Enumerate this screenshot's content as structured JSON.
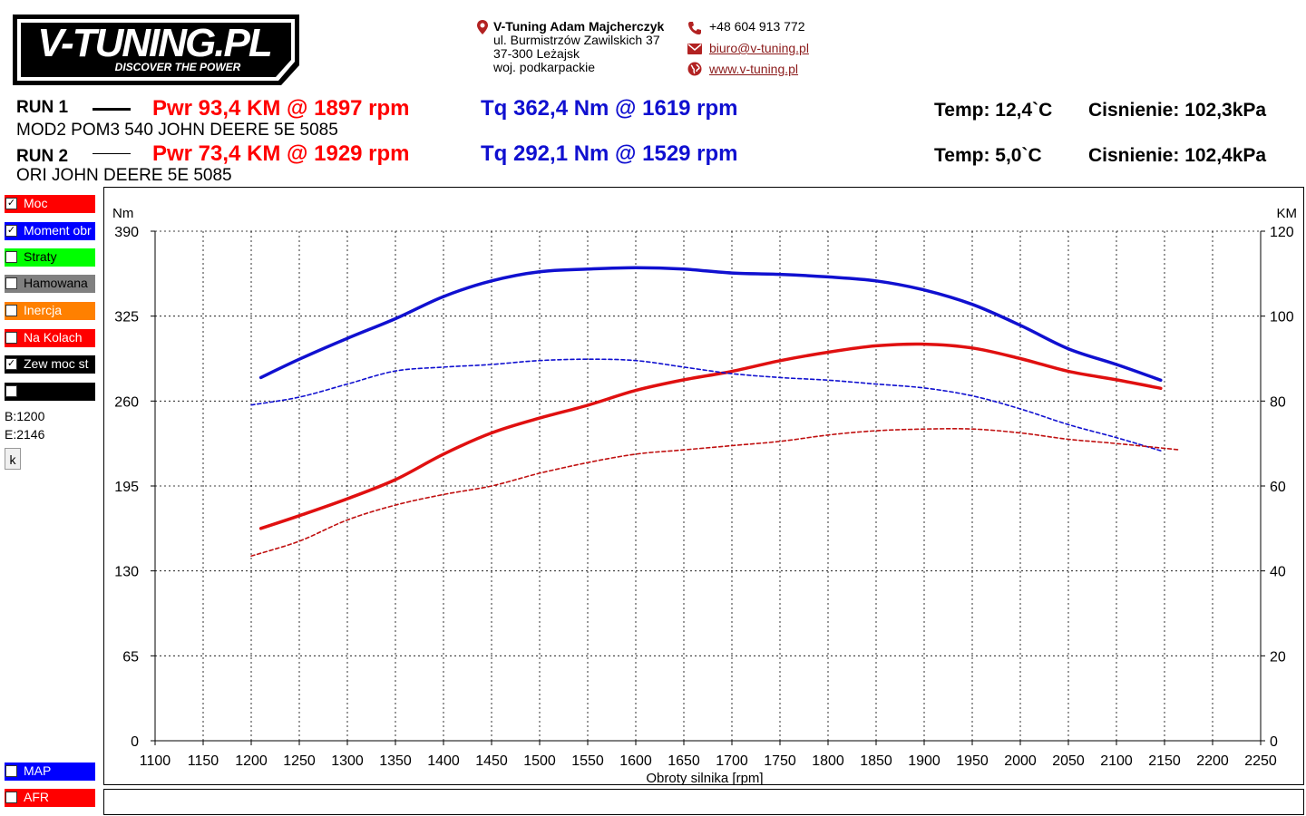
{
  "logo": {
    "main": "V-TUNING.PL",
    "tagline": "DISCOVER THE POWER"
  },
  "contact": {
    "name": "V-Tuning Adam Majcherczyk",
    "street": "ul. Burmistrzów Zawilskich 37",
    "city": "37-300 Leżajsk",
    "region": "woj. podkarpackie",
    "phone": "+48 604 913 772",
    "email": "biuro@v-tuning.pl",
    "website": "www.v-tuning.pl",
    "icons": [
      "location-pin-icon",
      "phone-icon",
      "envelope-icon",
      "globe-icon"
    ],
    "icon_color": "#b22222"
  },
  "runs": [
    {
      "label": "RUN 1",
      "description": "MOD2 POM3 540 JOHN DEERE 5E 5085",
      "power": "Pwr  93,4 KM @ 1897 rpm",
      "torque": "Tq 362,4 Nm @ 1619 rpm",
      "temp": "Temp: 12,4`C",
      "pressure": "Cisnienie: 102,3kPa",
      "line_style": "solid"
    },
    {
      "label": "RUN 2",
      "description": "ORI   JOHN DEERE 5E 5085",
      "power": "Pwr  73,4 KM @ 1929 rpm",
      "torque": "Tq 292,1 Nm @ 1529 rpm",
      "temp": "Temp: 5,0`C",
      "pressure": "Cisnienie: 102,4kPa",
      "line_style": "dashed"
    }
  ],
  "sidebar": {
    "items": [
      {
        "label": "Moc",
        "color": "#ff0000",
        "checked": true
      },
      {
        "label": "Moment obr",
        "color": "#0000ff",
        "checked": true
      },
      {
        "label": "Straty",
        "color": "#00ff00",
        "checked": false
      },
      {
        "label": "Hamowana",
        "color": "#808080",
        "checked": false
      },
      {
        "label": "Inercja",
        "color": "#ff8000",
        "checked": false
      },
      {
        "label": "Na Kolach",
        "color": "#ff0000",
        "checked": false
      },
      {
        "label": "Zew moc st",
        "color": "#000000",
        "checked": true
      },
      {
        "label": "",
        "color": "#000000",
        "checked": false
      }
    ],
    "begin": "B:1200",
    "end": "E:2146",
    "k_button": "k",
    "bottom_items": [
      {
        "label": "MAP",
        "color": "#0000ff",
        "checked": false
      },
      {
        "label": "AFR",
        "color": "#ff0000",
        "checked": false
      }
    ]
  },
  "chart_data": {
    "type": "line",
    "xlabel": "Obroty silnika [rpm]",
    "ylabel_left": "Nm",
    "ylabel_right": "KM",
    "xlim": [
      1100,
      2250
    ],
    "xticks": [
      1100,
      1150,
      1200,
      1250,
      1300,
      1350,
      1400,
      1450,
      1500,
      1550,
      1600,
      1650,
      1700,
      1750,
      1800,
      1850,
      1900,
      1950,
      2000,
      2050,
      2100,
      2150,
      2200,
      2250
    ],
    "ylim_left": [
      0,
      390
    ],
    "yticks_left": [
      0,
      65,
      130,
      195,
      260,
      325,
      390
    ],
    "ylim_right": [
      0,
      120
    ],
    "yticks_right": [
      0,
      20,
      40,
      60,
      80,
      100,
      120
    ],
    "grid": true,
    "series": [
      {
        "name": "Moment obr",
        "run": 1,
        "axis": "left",
        "color": "#1010d0",
        "style": "solid",
        "x": [
          1210,
          1250,
          1300,
          1350,
          1400,
          1450,
          1500,
          1550,
          1600,
          1650,
          1700,
          1750,
          1800,
          1850,
          1900,
          1950,
          2000,
          2050,
          2100,
          2146
        ],
        "y": [
          278,
          292,
          308,
          323,
          340,
          352,
          359,
          361,
          362,
          361,
          358,
          357,
          355,
          352,
          345,
          334,
          318,
          300,
          288,
          276
        ]
      },
      {
        "name": "Moc",
        "run": 1,
        "axis": "right",
        "color": "#e01010",
        "style": "solid",
        "x": [
          1210,
          1250,
          1300,
          1350,
          1400,
          1450,
          1500,
          1550,
          1600,
          1650,
          1700,
          1750,
          1800,
          1850,
          1900,
          1950,
          2000,
          2050,
          2100,
          2146
        ],
        "y": [
          50.0,
          53.0,
          57.0,
          61.5,
          67.5,
          72.5,
          76.0,
          79.0,
          82.5,
          85.0,
          87.0,
          89.5,
          91.5,
          93.0,
          93.4,
          92.5,
          90.0,
          87.0,
          85.0,
          83.0
        ]
      },
      {
        "name": "Moment obr",
        "run": 2,
        "axis": "left",
        "color": "#1010d0",
        "style": "dashed",
        "x": [
          1200,
          1250,
          1300,
          1350,
          1400,
          1450,
          1500,
          1550,
          1600,
          1650,
          1700,
          1750,
          1800,
          1850,
          1900,
          1950,
          2000,
          2050,
          2100,
          2146
        ],
        "y": [
          257,
          263,
          273,
          283,
          286,
          288,
          291,
          292,
          291,
          286,
          281,
          278,
          276,
          273,
          270,
          264,
          254,
          242,
          232,
          222
        ]
      },
      {
        "name": "Moc",
        "run": 2,
        "axis": "right",
        "color": "#c01010",
        "style": "dashed",
        "x": [
          1200,
          1250,
          1300,
          1350,
          1400,
          1450,
          1500,
          1550,
          1600,
          1650,
          1700,
          1750,
          1800,
          1850,
          1900,
          1950,
          2000,
          2050,
          2100,
          2166
        ],
        "y": [
          43.5,
          47.0,
          52.0,
          55.5,
          58.0,
          60.0,
          63.0,
          65.5,
          67.5,
          68.5,
          69.5,
          70.5,
          72.0,
          73.0,
          73.4,
          73.4,
          72.5,
          71.0,
          70.0,
          68.5
        ]
      }
    ]
  }
}
